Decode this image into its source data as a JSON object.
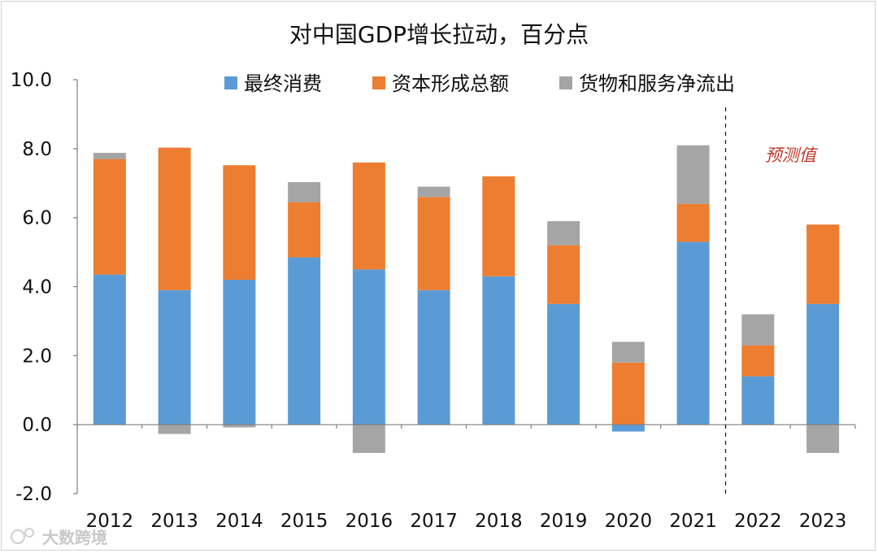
{
  "chart_data": {
    "type": "bar",
    "stacked": true,
    "title": "对中国GDP增长拉动，百分点",
    "categories": [
      "2012",
      "2013",
      "2014",
      "2015",
      "2016",
      "2017",
      "2018",
      "2019",
      "2020",
      "2021",
      "2022",
      "2023"
    ],
    "series": [
      {
        "name": "最终消费",
        "color": "#5b9bd5",
        "values": [
          4.35,
          3.9,
          4.2,
          4.85,
          4.5,
          3.9,
          4.3,
          3.5,
          -0.2,
          5.3,
          1.4,
          3.5
        ]
      },
      {
        "name": "资本形成总额",
        "color": "#ed7d31",
        "values": [
          3.35,
          4.13,
          3.32,
          1.6,
          3.1,
          2.7,
          2.9,
          1.7,
          1.8,
          1.1,
          0.9,
          2.3
        ]
      },
      {
        "name": "货物和服务净流出",
        "color": "#a5a5a5",
        "values": [
          0.18,
          -0.27,
          -0.08,
          0.58,
          -0.82,
          0.3,
          0.0,
          0.7,
          0.6,
          1.7,
          0.9,
          -0.82
        ]
      }
    ],
    "ylim": [
      -2.0,
      10.0
    ],
    "yticks": [
      "-2.0",
      "0.0",
      "2.0",
      "4.0",
      "6.0",
      "8.0",
      "10.0"
    ],
    "ytick_values": [
      -2,
      0,
      2,
      4,
      6,
      8,
      10
    ],
    "forecast_label": "预测值",
    "forecast_from": "2022",
    "legend_position": "top"
  },
  "watermark": "大数跨境"
}
